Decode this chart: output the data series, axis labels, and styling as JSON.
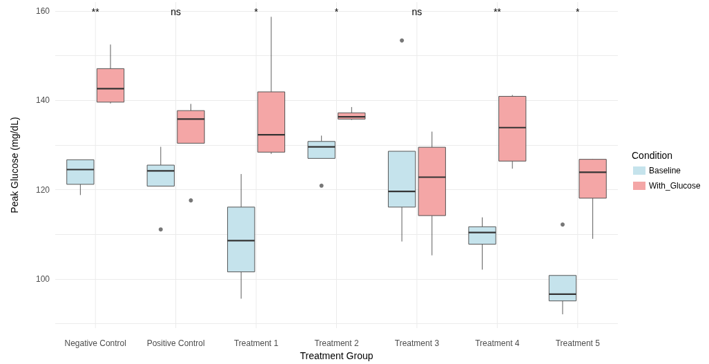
{
  "chart_data": {
    "type": "box",
    "xlabel": "Treatment Group",
    "ylabel": "Peak Glucose (mg/dL)",
    "legend_title": "Condition",
    "categories": [
      "Negative Control",
      "Positive Control",
      "Treatment 1",
      "Treatment 2",
      "Treatment 3",
      "Treatment 4",
      "Treatment 5"
    ],
    "series": [
      {
        "name": "Baseline",
        "color": "#c5e3ec",
        "boxes": [
          {
            "low": 118.8,
            "q1": 121.2,
            "median": 124.5,
            "q3": 126.7,
            "high": 126.7
          },
          {
            "low": 120.8,
            "q1": 120.8,
            "median": 124.2,
            "q3": 125.5,
            "high": 129.6,
            "outliers": [
              111.1
            ]
          },
          {
            "low": 95.6,
            "q1": 101.6,
            "median": 108.6,
            "q3": 116.1,
            "high": 123.5
          },
          {
            "low": 127.0,
            "q1": 127.0,
            "median": 129.6,
            "q3": 130.8,
            "high": 132.1,
            "outliers": [
              120.9
            ]
          },
          {
            "low": 108.4,
            "q1": 116.1,
            "median": 119.6,
            "q3": 128.6,
            "high": 128.6,
            "outliers": [
              153.4
            ]
          },
          {
            "low": 102.1,
            "q1": 107.8,
            "median": 110.4,
            "q3": 111.7,
            "high": 113.8
          },
          {
            "low": 92.1,
            "q1": 95.1,
            "median": 96.6,
            "q3": 100.8,
            "high": 100.8,
            "outliers": [
              112.2
            ]
          }
        ]
      },
      {
        "name": "With_Glucose",
        "color": "#f4a6a6",
        "boxes": [
          {
            "low": 139.3,
            "q1": 139.6,
            "median": 142.6,
            "q3": 147.1,
            "high": 152.5
          },
          {
            "low": 130.4,
            "q1": 130.4,
            "median": 135.8,
            "q3": 137.7,
            "high": 139.2,
            "outliers": [
              117.6
            ]
          },
          {
            "low": 128.0,
            "q1": 128.4,
            "median": 132.3,
            "q3": 141.9,
            "high": 158.7
          },
          {
            "low": 135.6,
            "q1": 135.8,
            "median": 136.3,
            "q3": 137.2,
            "high": 138.5
          },
          {
            "low": 105.3,
            "q1": 114.2,
            "median": 122.8,
            "q3": 129.5,
            "high": 133.0
          },
          {
            "low": 124.7,
            "q1": 126.4,
            "median": 133.9,
            "q3": 140.9,
            "high": 141.2
          },
          {
            "low": 109.0,
            "q1": 118.1,
            "median": 123.9,
            "q3": 126.8,
            "high": 126.9
          }
        ]
      }
    ],
    "ylim": [
      89,
      162
    ],
    "yticks": [
      {
        "value": 90,
        "label": null
      },
      100,
      {
        "value": 110,
        "label": null
      },
      120,
      {
        "value": 130,
        "label": null
      },
      140,
      {
        "value": 150,
        "label": null
      },
      160
    ],
    "grid": true,
    "legend": "right",
    "annotations": [
      "**",
      "ns",
      "*",
      "*",
      "ns",
      "**",
      "*"
    ]
  }
}
